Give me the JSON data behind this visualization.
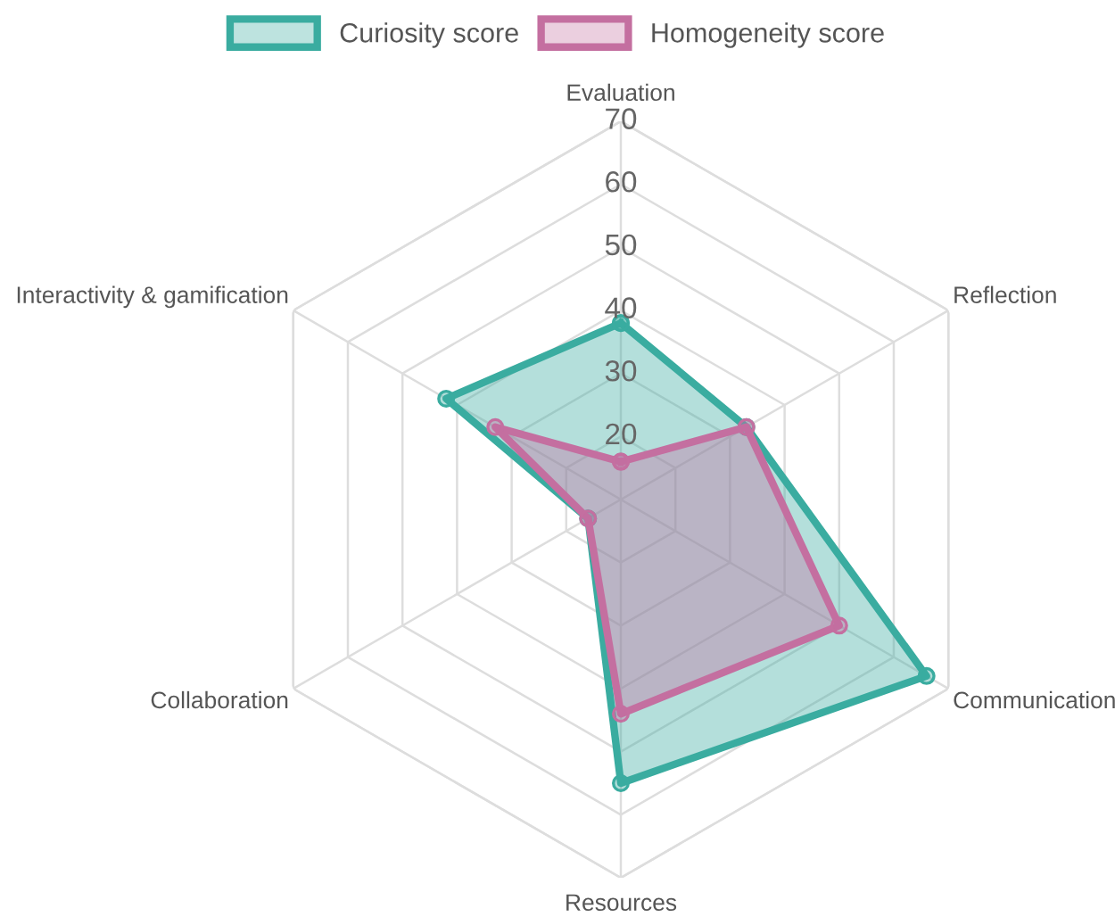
{
  "chart_data": {
    "type": "radar",
    "categories": [
      "Evaluation",
      "Reflection",
      "Communication",
      "Resources",
      "Collaboration",
      "Interactivity & gamification"
    ],
    "series": [
      {
        "name": "Curiosity score",
        "color": "#3aaca0",
        "values": [
          38,
          33,
          66,
          55,
          16,
          42
        ]
      },
      {
        "name": "Homogeneity score",
        "color": "#c46fa0",
        "values": [
          16,
          33,
          50,
          44,
          16,
          33
        ]
      }
    ],
    "ylim": [
      10,
      70
    ],
    "yticks": [
      20,
      30,
      40,
      50,
      60,
      70
    ],
    "grid": true,
    "legend": "top",
    "marker": "circle"
  }
}
